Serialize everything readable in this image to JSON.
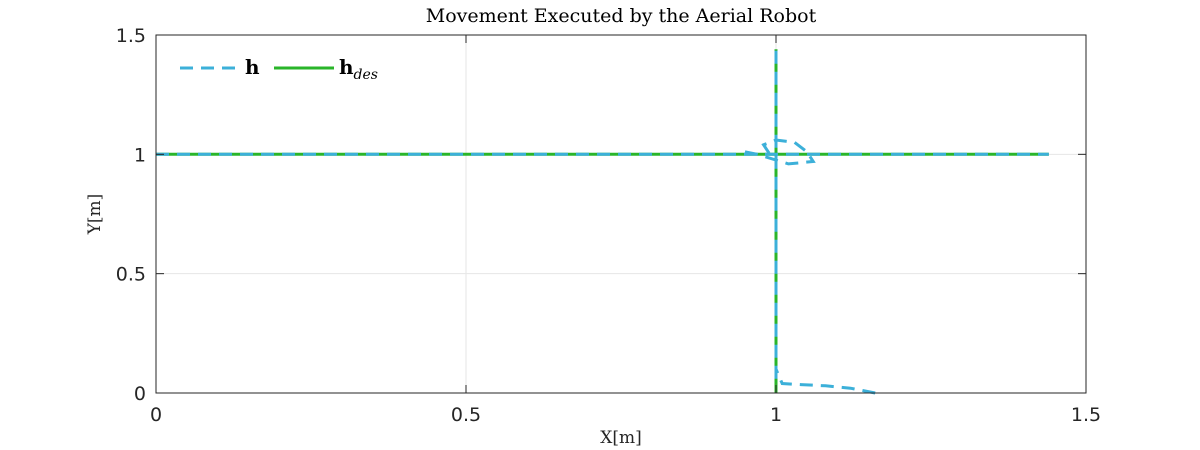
{
  "chart_data": {
    "type": "line",
    "title": "Movement Executed by the Aerial Robot",
    "xlabel": "X[m]",
    "ylabel": "Y[m]",
    "xlim": [
      0,
      1.5
    ],
    "ylim": [
      0,
      1.5
    ],
    "xticks": [
      0,
      0.5,
      1,
      1.5
    ],
    "yticks": [
      0,
      0.5,
      1,
      1.5
    ],
    "xtick_labels": [
      "0",
      "0.5",
      "1",
      "1.5"
    ],
    "ytick_labels": [
      "0",
      "0.5",
      "1",
      "1.5"
    ],
    "grid": true,
    "legend_position": "top-left",
    "series": [
      {
        "name": "h",
        "style": "dashed",
        "color": "#3cb0d9",
        "points": [
          [
            1.16,
            0.0
          ],
          [
            1.12,
            0.02
          ],
          [
            1.08,
            0.03
          ],
          [
            1.04,
            0.035
          ],
          [
            1.01,
            0.04
          ],
          [
            1.0,
            0.1
          ],
          [
            1.0,
            0.5
          ],
          [
            1.0,
            0.9
          ],
          [
            1.0,
            0.95
          ],
          [
            1.01,
            0.98
          ],
          [
            1.04,
            0.98
          ],
          [
            1.05,
            1.0
          ],
          [
            1.03,
            1.01
          ],
          [
            0.99,
            0.98
          ],
          [
            0.96,
            0.98
          ],
          [
            0.95,
            1.0
          ],
          [
            0.92,
            1.0
          ],
          [
            0.5,
            1.0
          ],
          [
            0.0,
            1.0
          ]
        ],
        "segments": [
          [
            [
              0.0,
              1.0
            ],
            [
              1.44,
              1.0
            ]
          ],
          [
            [
              1.0,
              0.06
            ],
            [
              1.0,
              1.44
            ]
          ],
          [
            [
              0.95,
              1.01
            ],
            [
              0.97,
              1.0
            ],
            [
              1.02,
              0.96
            ],
            [
              1.06,
              0.97
            ],
            [
              1.05,
              1.01
            ],
            [
              1.03,
              1.05
            ],
            [
              1.0,
              1.06
            ],
            [
              0.98,
              1.04
            ],
            [
              0.99,
              1.0
            ]
          ]
        ]
      },
      {
        "name": "h",
        "name_subscript": "des",
        "style": "solid",
        "color": "#2ab52a",
        "segments": [
          [
            [
              0.0,
              1.0
            ],
            [
              1.44,
              1.0
            ]
          ],
          [
            [
              1.0,
              0.0
            ],
            [
              1.0,
              1.44
            ]
          ]
        ]
      }
    ]
  }
}
